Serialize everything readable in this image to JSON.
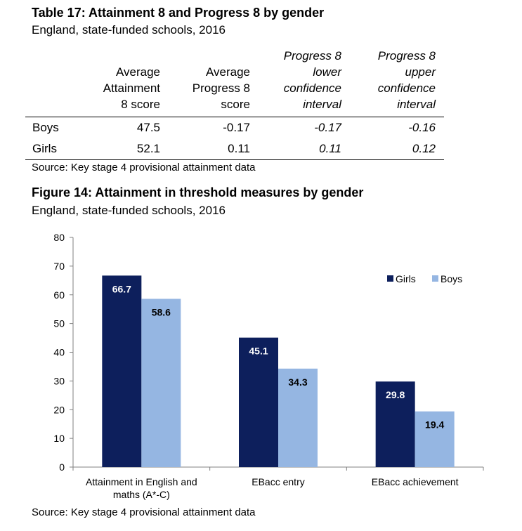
{
  "table17": {
    "title": "Table 17: Attainment 8 and Progress 8 by gender",
    "subtitle": "England, state-funded schools, 2016",
    "headers": [
      [
        "Average",
        "Attainment",
        "8 score"
      ],
      [
        "Average",
        "Progress 8",
        "score"
      ],
      [
        "Progress 8",
        "lower",
        "confidence",
        "interval"
      ],
      [
        "Progress 8",
        "upper",
        "confidence",
        "interval"
      ]
    ],
    "rows": [
      {
        "label": "Boys",
        "values": [
          "47.5",
          "-0.17",
          "-0.17",
          "-0.16"
        ]
      },
      {
        "label": "Girls",
        "values": [
          "52.1",
          "0.11",
          "0.11",
          "0.12"
        ]
      }
    ],
    "source": "Source: Key stage 4 provisional attainment data"
  },
  "figure14": {
    "title": "Figure 14: Attainment in threshold measures by gender",
    "subtitle": "England, state-funded schools, 2016",
    "source": "Source: Key stage 4 provisional attainment data"
  },
  "chart_data": {
    "type": "bar",
    "categories": [
      [
        "Attainment in English and",
        "maths (A*-C)"
      ],
      [
        "EBacc entry"
      ],
      [
        "EBacc achievement"
      ]
    ],
    "series": [
      {
        "name": "Girls",
        "color": "#0d1f5c",
        "values": [
          66.7,
          45.1,
          29.8
        ],
        "labels": [
          "66.7",
          "45.1",
          "29.8"
        ]
      },
      {
        "name": "Boys",
        "color": "#95b6e2",
        "values": [
          58.6,
          34.3,
          19.4
        ],
        "labels": [
          "58.6",
          "34.3",
          "19.4"
        ]
      }
    ],
    "ylim": [
      0,
      80
    ],
    "yticks": [
      0,
      10,
      20,
      30,
      40,
      50,
      60,
      70,
      80
    ],
    "grid": false,
    "legend": "top-right"
  }
}
